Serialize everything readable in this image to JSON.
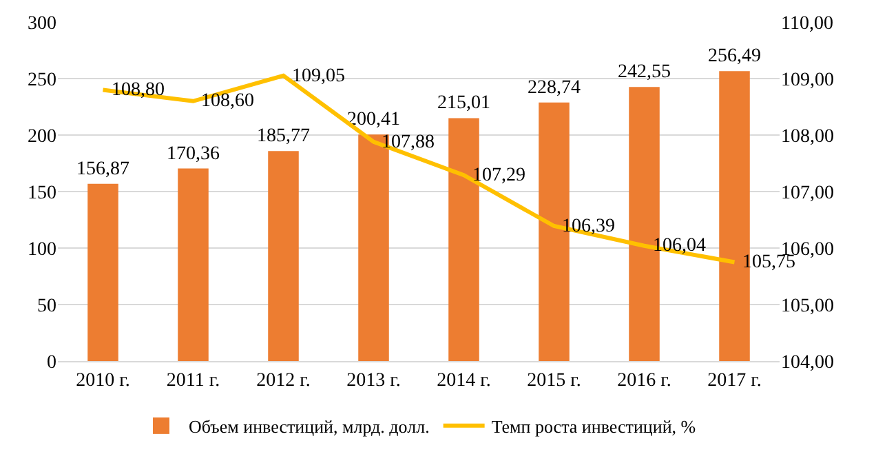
{
  "chart_data": {
    "type": "bar",
    "categories": [
      "2010 г.",
      "2011 г.",
      "2012 г.",
      "2013 г.",
      "2014 г.",
      "2015 г.",
      "2016 г.",
      "2017 г."
    ],
    "series": [
      {
        "name": "Объем инвестиций, млрд. долл.",
        "color": "#ed7d31",
        "values": [
          156.87,
          170.36,
          185.77,
          200.41,
          215.01,
          228.74,
          242.55,
          256.49
        ],
        "value_labels": [
          "156,87",
          "170,36",
          "185,77",
          "200,41",
          "215,01",
          "228,74",
          "242,55",
          "256,49"
        ]
      },
      {
        "name": "Темп роста инвестиций, %",
        "type": "line",
        "axis": "y2",
        "color": "#ffc000",
        "marker": "none",
        "values": [
          108.8,
          108.6,
          109.05,
          107.88,
          107.29,
          106.39,
          106.04,
          105.75
        ],
        "value_labels": [
          "108,80",
          "108,60",
          "109,05",
          "107,88",
          "107,29",
          "106,39",
          "106,04",
          "105,75"
        ]
      }
    ],
    "ylim": [
      0,
      300
    ],
    "yticks": [
      0,
      50,
      100,
      150,
      200,
      250,
      300
    ],
    "y2lim": [
      104,
      110
    ],
    "y2ticks": [
      {
        "value": 104,
        "label": "104,00"
      },
      {
        "value": 105,
        "label": "105,00"
      },
      {
        "value": 106,
        "label": "106,00"
      },
      {
        "value": 107,
        "label": "107,00"
      },
      {
        "value": 108,
        "label": "108,00"
      },
      {
        "value": 109,
        "label": "109,00"
      },
      {
        "value": 110,
        "label": "110,00"
      }
    ],
    "grid": "y",
    "legend": "bottom"
  }
}
